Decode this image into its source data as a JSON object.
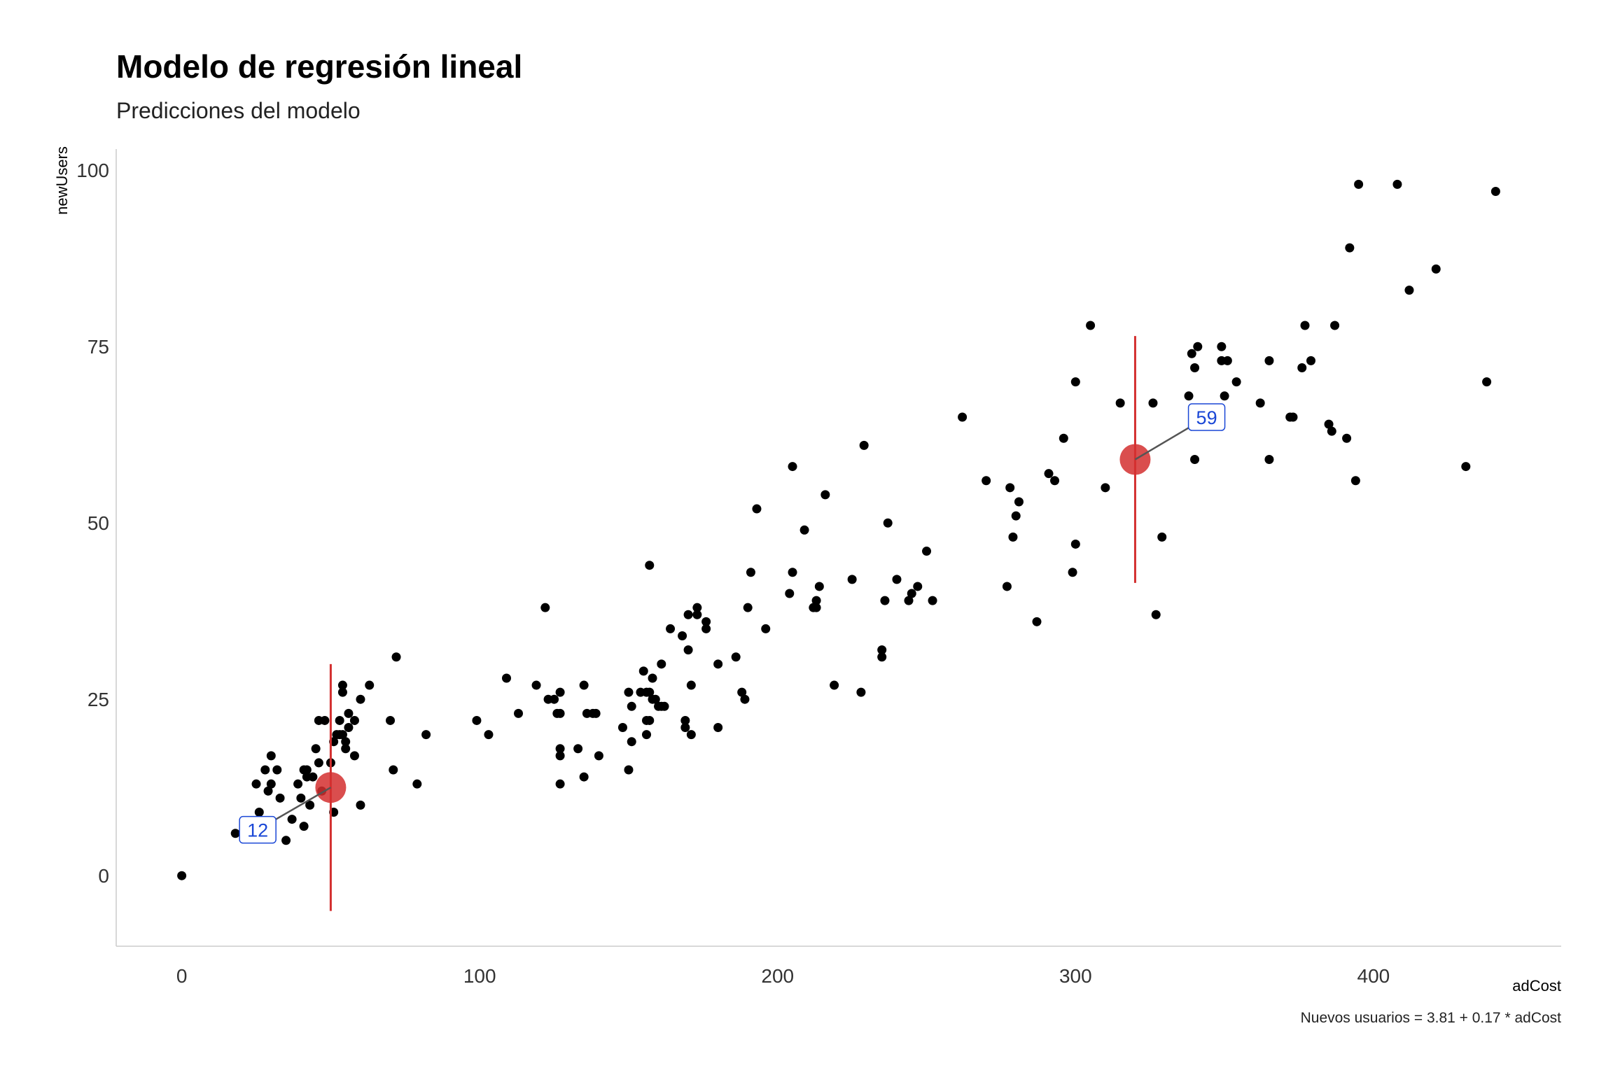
{
  "header": {
    "title": "Modelo de regresión lineal",
    "subtitle": "Predicciones del modelo"
  },
  "caption": "Nuevos usuarios = 3.81 + 0.17 * adCost",
  "chart_data": {
    "type": "scatter",
    "title": "Modelo de regresión lineal",
    "subtitle": "Predicciones del modelo",
    "xlabel": "adCost",
    "ylabel": "newUsers",
    "xlim": [
      -22,
      463
    ],
    "ylim": [
      -10,
      103
    ],
    "xticks": [
      0,
      100,
      200,
      300,
      400
    ],
    "yticks": [
      0,
      25,
      50,
      75,
      100
    ],
    "grid": false,
    "points": [
      [
        0,
        0
      ],
      [
        18,
        6
      ],
      [
        25,
        13
      ],
      [
        26,
        9
      ],
      [
        28,
        15
      ],
      [
        29,
        12
      ],
      [
        30,
        17
      ],
      [
        30,
        13
      ],
      [
        32,
        15
      ],
      [
        33,
        11
      ],
      [
        35,
        5
      ],
      [
        37,
        8
      ],
      [
        39,
        13
      ],
      [
        40,
        11
      ],
      [
        41,
        15
      ],
      [
        41,
        7
      ],
      [
        42,
        15
      ],
      [
        42,
        14
      ],
      [
        43,
        10
      ],
      [
        44,
        14
      ],
      [
        45,
        18
      ],
      [
        46,
        22
      ],
      [
        46,
        16
      ],
      [
        47,
        12
      ],
      [
        48,
        22
      ],
      [
        50,
        16
      ],
      [
        51,
        19
      ],
      [
        51,
        9
      ],
      [
        52,
        20
      ],
      [
        53,
        20
      ],
      [
        53,
        22
      ],
      [
        54,
        26
      ],
      [
        54,
        27
      ],
      [
        54,
        20
      ],
      [
        55,
        18
      ],
      [
        55,
        19
      ],
      [
        56,
        23
      ],
      [
        56,
        21
      ],
      [
        58,
        17
      ],
      [
        58,
        22
      ],
      [
        60,
        25
      ],
      [
        60,
        10
      ],
      [
        63,
        27
      ],
      [
        70,
        22
      ],
      [
        71,
        15
      ],
      [
        72,
        31
      ],
      [
        79,
        13
      ],
      [
        82,
        20
      ],
      [
        99,
        22
      ],
      [
        103,
        20
      ],
      [
        109,
        28
      ],
      [
        113,
        23
      ],
      [
        119,
        27
      ],
      [
        122,
        38
      ],
      [
        123,
        25
      ],
      [
        125,
        25
      ],
      [
        126,
        23
      ],
      [
        127,
        18
      ],
      [
        127,
        17
      ],
      [
        127,
        23
      ],
      [
        127,
        26
      ],
      [
        127,
        13
      ],
      [
        133,
        18
      ],
      [
        135,
        14
      ],
      [
        135,
        27
      ],
      [
        136,
        23
      ],
      [
        138,
        23
      ],
      [
        139,
        23
      ],
      [
        140,
        17
      ],
      [
        148,
        21
      ],
      [
        150,
        15
      ],
      [
        150,
        26
      ],
      [
        151,
        24
      ],
      [
        151,
        19
      ],
      [
        154,
        26
      ],
      [
        155,
        29
      ],
      [
        156,
        22
      ],
      [
        156,
        20
      ],
      [
        156,
        26
      ],
      [
        157,
        44
      ],
      [
        157,
        22
      ],
      [
        157,
        26
      ],
      [
        158,
        25
      ],
      [
        158,
        28
      ],
      [
        159,
        25
      ],
      [
        160,
        24
      ],
      [
        161,
        24
      ],
      [
        161,
        30
      ],
      [
        162,
        24
      ],
      [
        164,
        35
      ],
      [
        168,
        34
      ],
      [
        169,
        21
      ],
      [
        169,
        22
      ],
      [
        170,
        37
      ],
      [
        170,
        32
      ],
      [
        171,
        20
      ],
      [
        171,
        27
      ],
      [
        173,
        38
      ],
      [
        173,
        37
      ],
      [
        176,
        36
      ],
      [
        176,
        35
      ],
      [
        180,
        30
      ],
      [
        180,
        21
      ],
      [
        186,
        31
      ],
      [
        188,
        26
      ],
      [
        189,
        25
      ],
      [
        190,
        38
      ],
      [
        191,
        43
      ],
      [
        193,
        52
      ],
      [
        196,
        35
      ],
      [
        204,
        40
      ],
      [
        205,
        43
      ],
      [
        205,
        58
      ],
      [
        209,
        49
      ],
      [
        212,
        38
      ],
      [
        213,
        39
      ],
      [
        213,
        38
      ],
      [
        214,
        41
      ],
      [
        216,
        54
      ],
      [
        219,
        27
      ],
      [
        225,
        42
      ],
      [
        228,
        26
      ],
      [
        229,
        61
      ],
      [
        235,
        31
      ],
      [
        235,
        32
      ],
      [
        236,
        39
      ],
      [
        237,
        50
      ],
      [
        240,
        42
      ],
      [
        244,
        39
      ],
      [
        245,
        40
      ],
      [
        247,
        41
      ],
      [
        250,
        46
      ],
      [
        252,
        39
      ],
      [
        262,
        65
      ],
      [
        270,
        56
      ],
      [
        277,
        41
      ],
      [
        278,
        55
      ],
      [
        279,
        48
      ],
      [
        280,
        51
      ],
      [
        281,
        53
      ],
      [
        287,
        36
      ],
      [
        291,
        57
      ],
      [
        293,
        56
      ],
      [
        296,
        62
      ],
      [
        299,
        43
      ],
      [
        300,
        70
      ],
      [
        300,
        47
      ],
      [
        305,
        78
      ],
      [
        310,
        55
      ],
      [
        315,
        67
      ],
      [
        326,
        67
      ],
      [
        327,
        37
      ],
      [
        329,
        48
      ],
      [
        338,
        68
      ],
      [
        339,
        74
      ],
      [
        340,
        72
      ],
      [
        340,
        59
      ],
      [
        341,
        75
      ],
      [
        349,
        75
      ],
      [
        349,
        73
      ],
      [
        350,
        68
      ],
      [
        351,
        73
      ],
      [
        354,
        70
      ],
      [
        362,
        67
      ],
      [
        365,
        73
      ],
      [
        365,
        59
      ],
      [
        372,
        65
      ],
      [
        373,
        65
      ],
      [
        376,
        72
      ],
      [
        377,
        78
      ],
      [
        379,
        73
      ],
      [
        385,
        64
      ],
      [
        386,
        63
      ],
      [
        387,
        78
      ],
      [
        391,
        62
      ],
      [
        392,
        89
      ],
      [
        394,
        56
      ],
      [
        395,
        98
      ],
      [
        408,
        98
      ],
      [
        412,
        83
      ],
      [
        421,
        86
      ],
      [
        431,
        58
      ],
      [
        438,
        70
      ],
      [
        441,
        97
      ]
    ],
    "predictions": [
      {
        "x": 50,
        "y": 12.5,
        "label": "12",
        "lower": -5,
        "upper": 30,
        "label_x": 25.5,
        "label_y": 6.5
      },
      {
        "x": 320,
        "y": 59,
        "label": "59",
        "lower": 41.5,
        "upper": 76.5,
        "label_x": 344,
        "label_y": 65
      }
    ],
    "colors": {
      "points": "#000000",
      "prediction": "#d32f2f",
      "interval": "#d32f2f",
      "connector": "#555555",
      "label_text": "#1a47d6",
      "label_border": "#1a47d6"
    }
  }
}
